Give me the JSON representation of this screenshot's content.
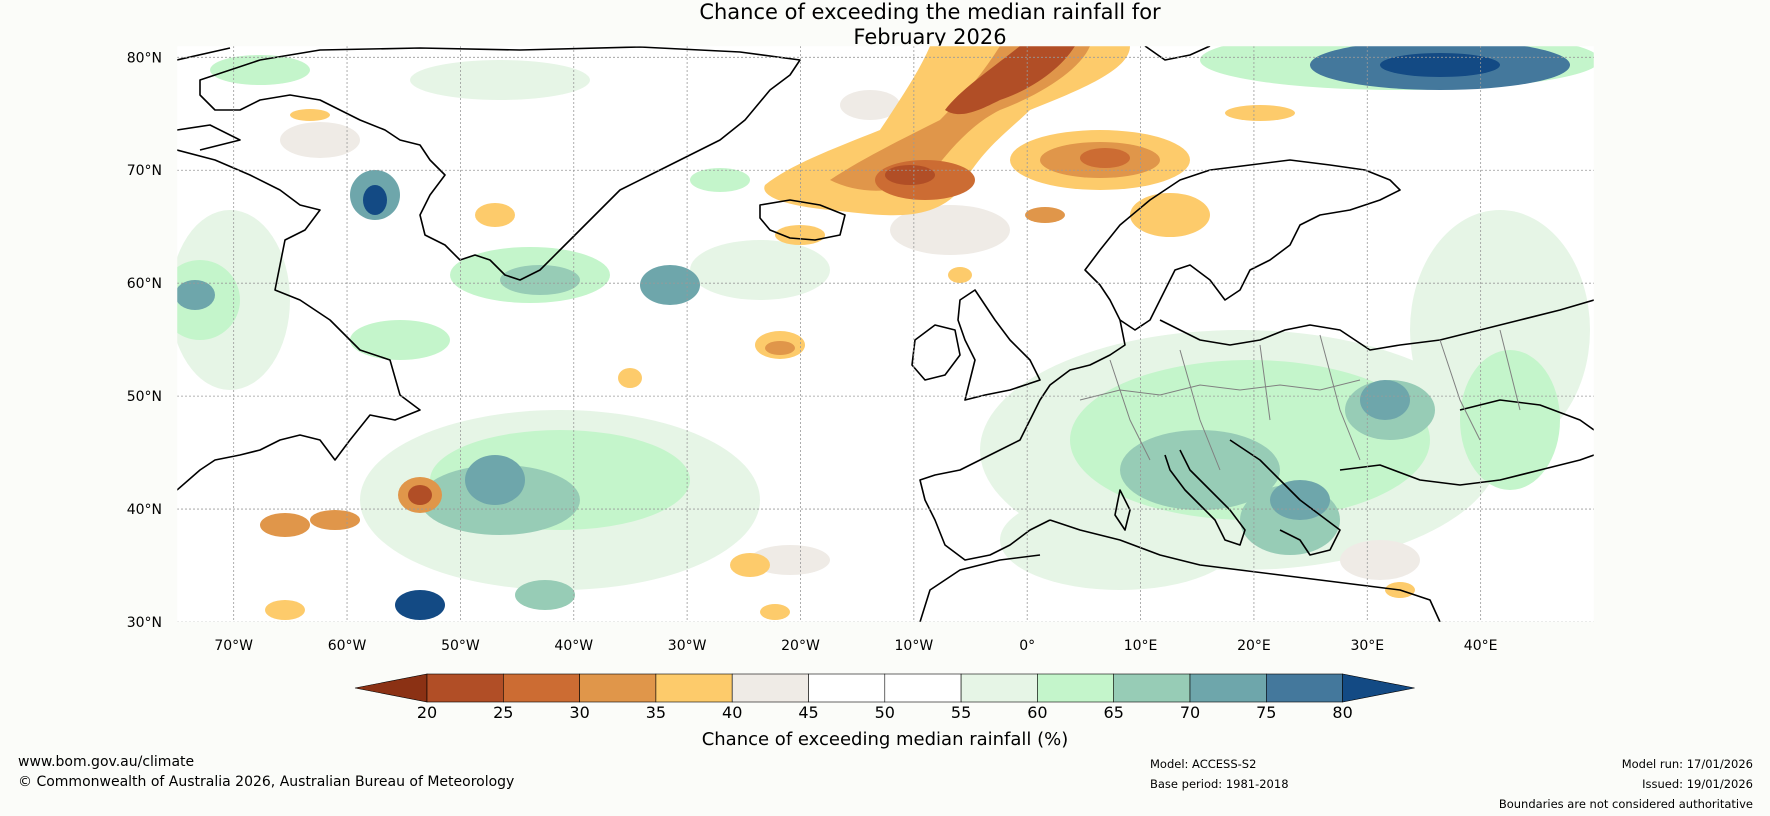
{
  "title": {
    "line1": "Chance of exceeding the median rainfall for",
    "line2": "February 2026"
  },
  "map": {
    "lat_labels": [
      "80°N",
      "70°N",
      "60°N",
      "50°N",
      "40°N",
      "30°N"
    ],
    "lon_labels": [
      "70°W",
      "60°W",
      "50°W",
      "40°W",
      "30°W",
      "20°W",
      "10°W",
      "0°",
      "10°E",
      "20°E",
      "30°E",
      "40°E"
    ],
    "extent": {
      "lon_min": -75,
      "lon_max": 50,
      "lat_min": 30,
      "lat_max": 81
    }
  },
  "colorbar": {
    "title": "Chance of exceeding median rainfall (%)",
    "ticks": [
      "20",
      "25",
      "30",
      "35",
      "40",
      "45",
      "50",
      "55",
      "60",
      "65",
      "70",
      "75",
      "80"
    ],
    "colors": [
      "#8b3114",
      "#b14e26",
      "#cc6c33",
      "#e0964a",
      "#fdcb6b",
      "#efebe6",
      "#ffffff",
      "#ffffff",
      "#e6f5e6",
      "#c4f5cb",
      "#97ccb6",
      "#6ea6ab",
      "#44789c",
      "#134a84"
    ]
  },
  "footer": {
    "website": "www.bom.gov.au/climate",
    "copyright": "© Commonwealth of Australia 2026, Australian Bureau of Meteorology",
    "model": "Model: ACCESS-S2",
    "base_period": "Base period: 1981-2018",
    "model_run": "Model run: 17/01/2026",
    "issued": "Issued: 19/01/2026",
    "disclaimer": "Boundaries are not considered authoritative"
  }
}
